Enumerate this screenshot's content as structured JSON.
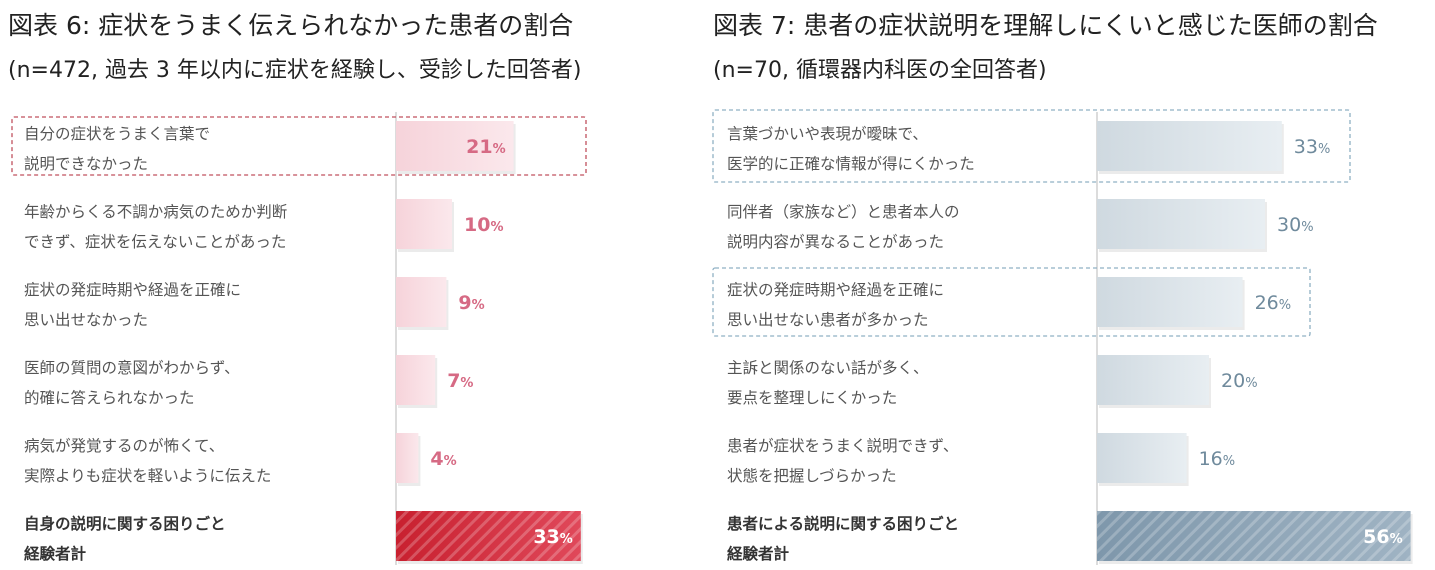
{
  "chart_data": [
    {
      "type": "bar",
      "title": "図表 6: 症状をうまく伝えられなかった患者の割合",
      "subtitle": "(n=472, 過去 3 年以内に症状を経験し、受診した回答者)",
      "unit": "%",
      "categories": [
        [
          "自分の症状をうまく言葉で",
          "説明できなかった"
        ],
        [
          "年齢からくる不調か病気のためか判断",
          "できず、症状を伝えないことがあった"
        ],
        [
          "症状の発症時期や経過を正確に",
          "思い出せなかった"
        ],
        [
          "医師の質問の意図がわからず、",
          "的確に答えられなかった"
        ],
        [
          "病気が発覚するのが怖くて、",
          "実際よりも症状を軽いように伝えた"
        ],
        [
          "自身の説明に関する困りごと",
          "経験者計"
        ]
      ],
      "values": [
        21,
        10,
        9,
        7,
        4,
        33
      ],
      "highlighted": [
        0
      ],
      "total_index": 5,
      "colors": {
        "bar": "#f6d3da",
        "bar_fade": "#fbe8ec",
        "value": "#d66a84",
        "total_bar": "#c8202f",
        "total_bar_light": "#e0485a",
        "highlight_border": "#c0505e",
        "axis": "#d0d0d0"
      }
    },
    {
      "type": "bar",
      "title": "図表 7: 患者の症状説明を理解しにくいと感じた医師の割合",
      "subtitle": "(n=70, 循環器内科医の全回答者)",
      "unit": "%",
      "categories": [
        [
          "言葉づかいや表現が曖昧で、",
          "医学的に正確な情報が得にくかった"
        ],
        [
          "同伴者（家族など）と患者本人の",
          "説明内容が異なることがあった"
        ],
        [
          "症状の発症時期や経過を正確に",
          "思い出せない患者が多かった"
        ],
        [
          "主訴と関係のない話が多く、",
          "要点を整理しにくかった"
        ],
        [
          "患者が症状をうまく説明できず、",
          "状態を把握しづらかった"
        ],
        [
          "患者による説明に関する困りごと",
          "経験者計"
        ]
      ],
      "values": [
        33,
        30,
        26,
        20,
        16,
        56
      ],
      "highlighted": [
        0,
        2
      ],
      "total_index": 5,
      "colors": {
        "bar": "#cfd9e0",
        "bar_fade": "#e8eef2",
        "value": "#6f8a9c",
        "total_bar": "#7e97ab",
        "total_bar_light": "#9fb3c3",
        "highlight_border": "#8fb0c4",
        "axis": "#d0d0d0"
      }
    }
  ]
}
